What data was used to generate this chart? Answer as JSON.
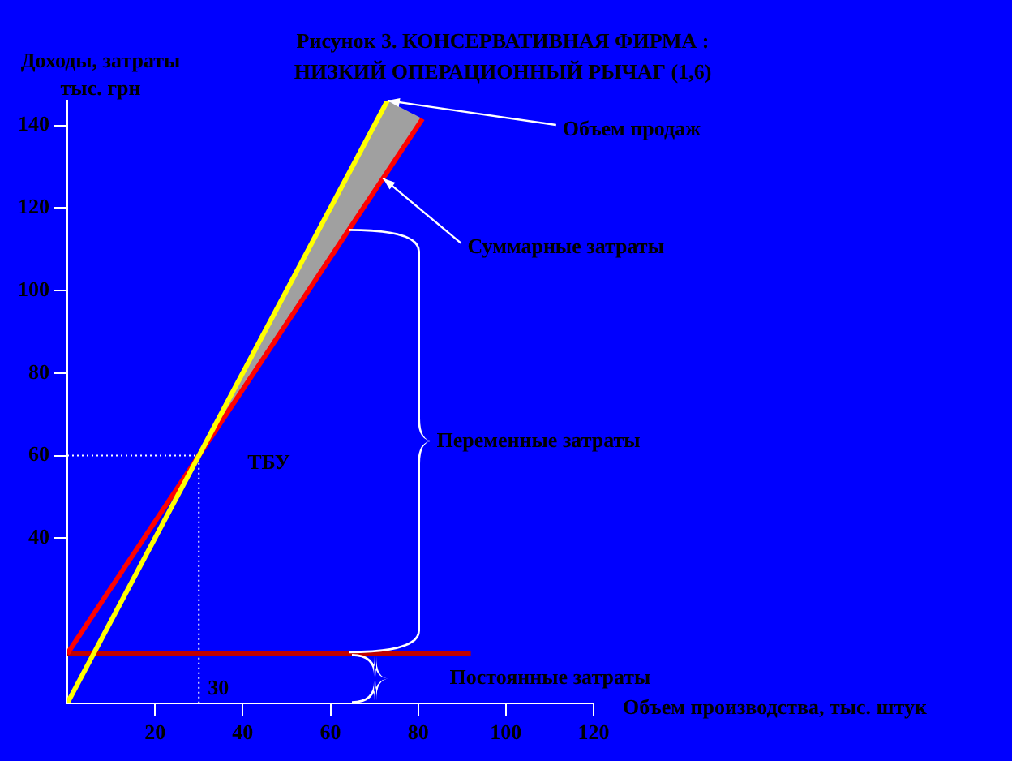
{
  "chart_data": {
    "type": "line",
    "title": "Рисунок 3. КОНСЕРВАТИВНАЯ ФИРМА : НИЗКИЙ ОПЕРАЦИОННЫЙ РЫЧАГ (1,6)",
    "xlabel": "Объем производства, тыс. штук",
    "ylabel": "Доходы, затраты тыс. грн",
    "series": [
      {
        "type": "line",
        "color": "#ffff00",
        "x": [
          0,
          73
        ],
        "values": [
          0,
          146
        ]
      },
      {
        "type": "line",
        "color": "#ff0000",
        "x": [
          0,
          81
        ],
        "values": [
          12,
          141.6
        ]
      },
      {
        "type": "line",
        "color": "#c00000",
        "x": [
          0,
          92
        ],
        "values": [
          12,
          12
        ]
      }
    ],
    "xlim": [
      0,
      120
    ],
    "xticks": [
      20,
      40,
      60,
      80,
      100,
      120
    ],
    "ylim": [
      0,
      146
    ],
    "yticks": [
      40,
      60,
      80,
      100,
      120,
      140
    ],
    "ref_lines": [
      {
        "axis": "x",
        "value": 30,
        "label": "30",
        "line_style": "dotted"
      },
      {
        "axis": "y",
        "value": 60,
        "label": null,
        "line_style": "dotted"
      }
    ],
    "annotations": [
      {
        "text": "Объем продаж",
        "x": 73,
        "y": 146
      },
      {
        "text": "Суммарные затраты",
        "x": 72,
        "y": 127.2
      },
      "Переменные затраты",
      "Постоянные затраты",
      {
        "text": "ТБУ",
        "x": 30,
        "y": 60
      }
    ],
    "grid": false,
    "legend": false
  }
}
